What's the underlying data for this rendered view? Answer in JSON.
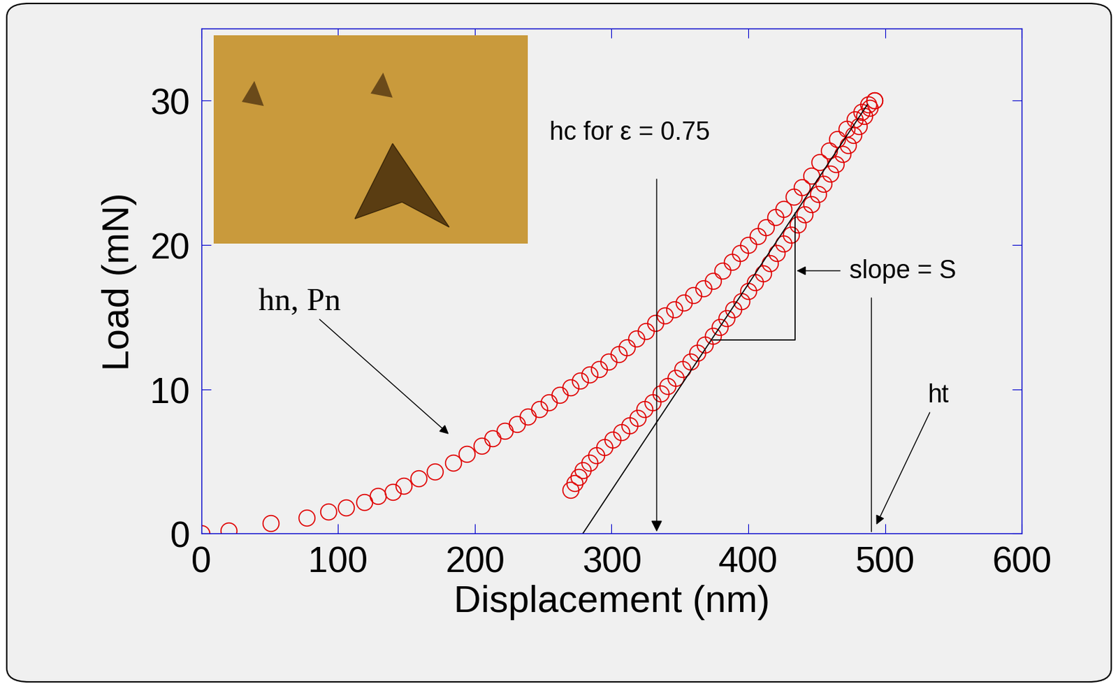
{
  "chart_data": {
    "type": "scatter",
    "xlabel": "Displacement (nm)",
    "ylabel": "Load (mN)",
    "xlim": [
      0,
      600
    ],
    "xticks": [
      0,
      100,
      200,
      300,
      400,
      500,
      600
    ],
    "ylim": [
      0,
      35
    ],
    "yticks": [
      0,
      10,
      20,
      30
    ],
    "grid": false,
    "series": [
      {
        "type": "scatter",
        "color": "#e00000",
        "marker": "circle",
        "x": [
          0,
          20,
          51,
          77,
          93,
          106,
          119,
          129,
          140,
          148,
          159,
          171,
          184,
          194,
          205,
          213,
          222,
          231,
          239,
          247,
          254,
          262,
          270,
          277,
          284,
          291,
          298,
          305,
          311,
          318,
          325,
          332,
          339,
          346,
          353,
          360,
          367,
          374,
          381,
          388,
          394,
          400,
          407,
          413,
          420,
          426,
          433,
          439,
          446,
          452,
          459,
          465,
          472,
          478,
          483,
          488,
          492
        ],
        "values": [
          0,
          0.2,
          0.7,
          1.1,
          1.5,
          1.8,
          2.2,
          2.6,
          2.9,
          3.3,
          3.8,
          4.3,
          4.9,
          5.5,
          6.1,
          6.6,
          7.1,
          7.6,
          8.1,
          8.6,
          9.1,
          9.6,
          10.1,
          10.6,
          11.0,
          11.4,
          11.9,
          12.4,
          12.9,
          13.5,
          14.0,
          14.6,
          15.1,
          15.5,
          16.0,
          16.5,
          17.0,
          17.5,
          18.2,
          18.8,
          19.4,
          20.0,
          20.6,
          21.2,
          21.9,
          22.5,
          23.3,
          24.0,
          24.8,
          25.7,
          26.5,
          27.3,
          28.0,
          28.7,
          29.2,
          29.7,
          30.0
        ]
      },
      {
        "type": "scatter",
        "color": "#e00000",
        "marker": "circle",
        "x": [
          492,
          489,
          485,
          481,
          477,
          473,
          469,
          464,
          460,
          455,
          451,
          446,
          441,
          436,
          431,
          426,
          421,
          416,
          411,
          405,
          400,
          395,
          389,
          384,
          379,
          374,
          368,
          363,
          358,
          352,
          347,
          341,
          336,
          330,
          324,
          319,
          313,
          307,
          301,
          295,
          289,
          284,
          279,
          276,
          273,
          270
        ],
        "values": [
          30.0,
          29.5,
          28.9,
          28.2,
          27.6,
          26.9,
          26.3,
          25.6,
          24.9,
          24.2,
          23.5,
          22.8,
          22.1,
          21.4,
          20.7,
          20.1,
          19.4,
          18.7,
          18.0,
          17.4,
          16.8,
          16.1,
          15.5,
          14.9,
          14.3,
          13.7,
          13.1,
          12.5,
          11.9,
          11.4,
          10.8,
          10.2,
          9.7,
          9.1,
          8.6,
          8.0,
          7.5,
          7.0,
          6.5,
          6.0,
          5.4,
          4.9,
          4.4,
          3.9,
          3.5,
          3.0
        ]
      },
      {
        "type": "line",
        "color": "#000000",
        "line_style": "solid",
        "x": [
          279,
          487
        ],
        "values": [
          0,
          29.7
        ]
      },
      {
        "type": "line",
        "color": "#000000",
        "line_style": "solid",
        "x": [
          374,
          434,
          434
        ],
        "values": [
          13.4,
          13.4,
          22.2
        ]
      }
    ],
    "annotations": [
      {
        "text": "hc for ε = 0.75",
        "x": 333,
        "y": 0
      },
      {
        "text": "slope = S",
        "x": 434,
        "y": 18.2
      },
      {
        "text": "ht",
        "x": 493,
        "y": 0.5
      },
      {
        "text": "hn, Pn",
        "x": 182,
        "y": 6.8
      }
    ]
  }
}
